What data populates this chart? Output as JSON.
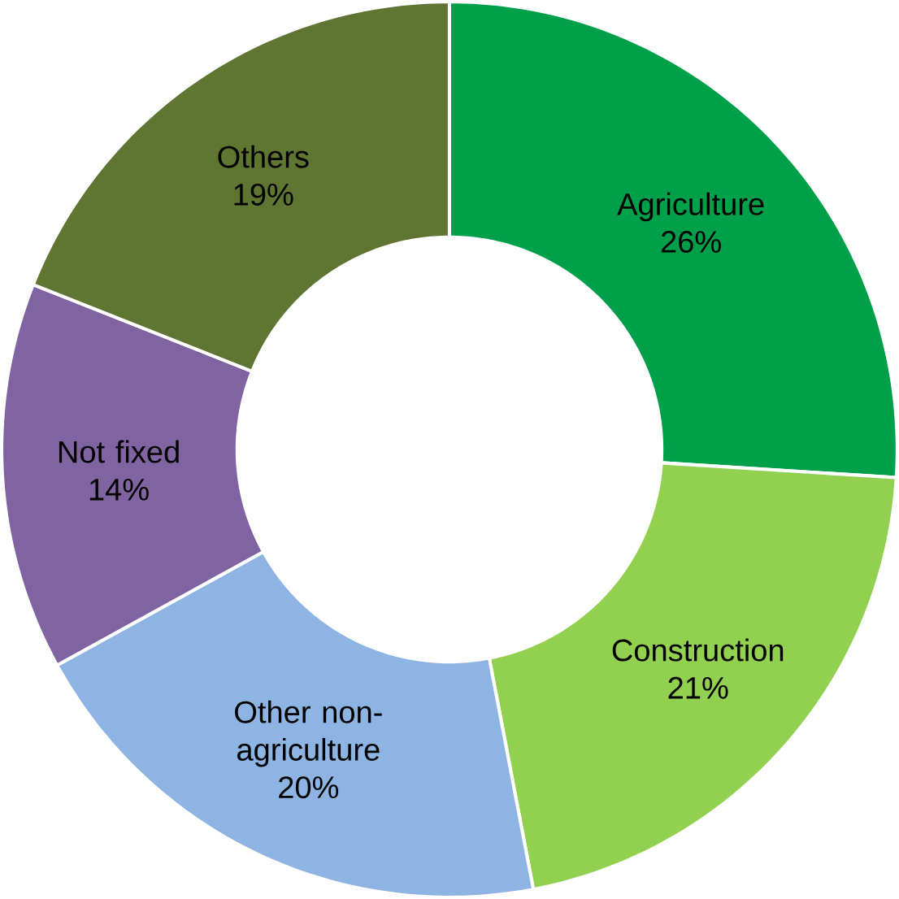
{
  "chart_data": {
    "type": "donut",
    "categories": [
      "Agriculture",
      "Construction",
      "Other non-agriculture",
      "Not fixed",
      "Others"
    ],
    "values": [
      26,
      21,
      20,
      14,
      19
    ],
    "value_labels": [
      "26%",
      "21%",
      "20%",
      "14%",
      "19%"
    ],
    "colors": [
      "#00a04a",
      "#92d050",
      "#8db4e2",
      "#8064a2",
      "#5f7532"
    ]
  }
}
